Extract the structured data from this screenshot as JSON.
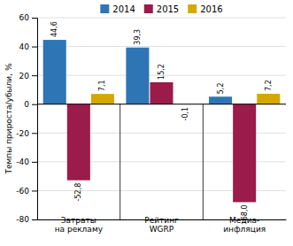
{
  "chart_data": {
    "type": "bar",
    "categories": [
      "Затраты\nна рекламу",
      "Рейтинг\nWGRP",
      "Медиа-\nинфляция"
    ],
    "series": [
      {
        "name": "2014",
        "color": "#2E75B6",
        "values": [
          44.6,
          39.3,
          5.2
        ],
        "value_labels": [
          "44,6",
          "39,3",
          "5,2"
        ]
      },
      {
        "name": "2015",
        "color": "#9B1B4B",
        "values": [
          -52.8,
          15.2,
          -68.0
        ],
        "value_labels": [
          "-52,8",
          "15,2",
          "-68,0"
        ]
      },
      {
        "name": "2016",
        "color": "#D4A800",
        "values": [
          7.1,
          -0.1,
          7.2
        ],
        "value_labels": [
          "7,1",
          "-0,1",
          "7,2"
        ]
      }
    ],
    "y_label": "Темпы прироста/убыли, %",
    "ylim": [
      -80,
      60
    ],
    "yticks": [
      -80,
      -60,
      -40,
      -20,
      0,
      20,
      40,
      60
    ],
    "grid": true,
    "legend": "top",
    "data_labels": true
  }
}
